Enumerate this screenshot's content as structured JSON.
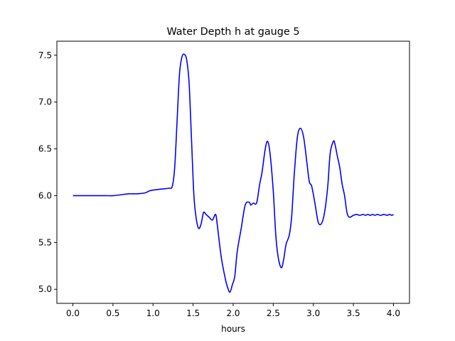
{
  "chart_data": {
    "type": "line",
    "title": "Water Depth h at gauge 5",
    "xlabel": "hours",
    "ylabel": "",
    "xlim": [
      -0.2,
      4.2
    ],
    "ylim": [
      4.85,
      7.65
    ],
    "xticks": [
      0.0,
      0.5,
      1.0,
      1.5,
      2.0,
      2.5,
      3.0,
      3.5,
      4.0
    ],
    "xtick_labels": [
      "0.0",
      "0.5",
      "1.0",
      "1.5",
      "2.0",
      "2.5",
      "3.0",
      "3.5",
      "4.0"
    ],
    "yticks": [
      5.0,
      5.5,
      6.0,
      6.5,
      7.0,
      7.5
    ],
    "ytick_labels": [
      "5.0",
      "5.5",
      "6.0",
      "6.5",
      "7.0",
      "7.5"
    ],
    "grid": false,
    "legend": "none",
    "line_color": "#0000ff",
    "series": [
      {
        "x": [
          0.0,
          0.2,
          0.4,
          0.5,
          0.6,
          0.7,
          0.8,
          0.9,
          0.95,
          1.0,
          1.1,
          1.2,
          1.24,
          1.27,
          1.3,
          1.33,
          1.36,
          1.39,
          1.42,
          1.45,
          1.48,
          1.51,
          1.54,
          1.57,
          1.6,
          1.63,
          1.66,
          1.7,
          1.74,
          1.78,
          1.8,
          1.85,
          1.9,
          1.93,
          1.96,
          1.99,
          2.02,
          2.05,
          2.1,
          2.15,
          2.2,
          2.22,
          2.25,
          2.28,
          2.3,
          2.33,
          2.36,
          2.4,
          2.43,
          2.46,
          2.5,
          2.53,
          2.56,
          2.6,
          2.63,
          2.66,
          2.7,
          2.73,
          2.76,
          2.8,
          2.84,
          2.88,
          2.92,
          2.95,
          2.98,
          3.02,
          3.06,
          3.1,
          3.14,
          3.18,
          3.21,
          3.25,
          3.27,
          3.3,
          3.33,
          3.36,
          3.39,
          3.42,
          3.45,
          3.5,
          3.54,
          3.58,
          3.62,
          3.65,
          3.68,
          3.71,
          3.74,
          3.77,
          3.8,
          3.84,
          3.88,
          3.92,
          3.95,
          3.98,
          4.0
        ],
        "y": [
          6.0,
          6.0,
          6.0,
          6.0,
          6.01,
          6.02,
          6.02,
          6.03,
          6.05,
          6.06,
          6.07,
          6.08,
          6.1,
          6.3,
          6.8,
          7.3,
          7.48,
          7.51,
          7.45,
          7.2,
          6.6,
          6.0,
          5.75,
          5.65,
          5.7,
          5.82,
          5.8,
          5.77,
          5.74,
          5.8,
          5.7,
          5.35,
          5.12,
          5.02,
          4.97,
          5.05,
          5.14,
          5.4,
          5.65,
          5.9,
          5.93,
          5.9,
          5.92,
          5.91,
          5.95,
          6.12,
          6.25,
          6.5,
          6.58,
          6.45,
          6.05,
          5.6,
          5.35,
          5.23,
          5.32,
          5.48,
          5.58,
          5.78,
          6.2,
          6.62,
          6.72,
          6.62,
          6.35,
          6.15,
          6.1,
          5.92,
          5.72,
          5.7,
          5.82,
          6.1,
          6.45,
          6.58,
          6.55,
          6.42,
          6.3,
          6.12,
          6.0,
          5.82,
          5.77,
          5.79,
          5.8,
          5.79,
          5.8,
          5.79,
          5.8,
          5.79,
          5.8,
          5.79,
          5.8,
          5.79,
          5.8,
          5.79,
          5.8,
          5.79,
          5.8
        ]
      }
    ]
  }
}
